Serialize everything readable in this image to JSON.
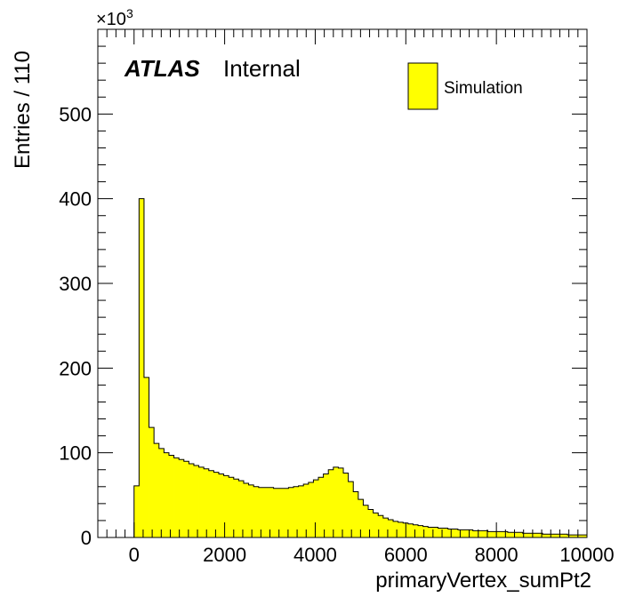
{
  "chart_data": {
    "type": "bar",
    "title": "",
    "xlabel": "primaryVertex_sumPt2",
    "ylabel": "Entries / 110",
    "y_scale_label": "×10",
    "y_scale_exponent": "3",
    "xlim": [
      -800,
      10000
    ],
    "ylim": [
      0,
      600
    ],
    "xticks": [
      "0",
      "2000",
      "4000",
      "6000",
      "8000",
      "10000"
    ],
    "yticks": [
      "0",
      "100",
      "200",
      "300",
      "400",
      "500"
    ],
    "annotation": {
      "experiment": "ATLAS",
      "status": "Internal"
    },
    "legend": {
      "position": "top-right",
      "entries": [
        "Simulation"
      ]
    },
    "series": [
      {
        "name": "Simulation",
        "color": "#ffff00",
        "bin_width": 110,
        "bin_edges_start": 0,
        "values": [
          61,
          400,
          189,
          130,
          111,
          105,
          100,
          97,
          94,
          92,
          90,
          87,
          85,
          83,
          81,
          79,
          77,
          75,
          73,
          71,
          69,
          67,
          64,
          62,
          60,
          59,
          59,
          59,
          58,
          58,
          58,
          59,
          60,
          61,
          63,
          65,
          68,
          71,
          75,
          80,
          83,
          82,
          76,
          66,
          54,
          45,
          38,
          33,
          29,
          26,
          23,
          21,
          19,
          18,
          17,
          16,
          15,
          14,
          13,
          12,
          12,
          11,
          11,
          10,
          10,
          9,
          9,
          9,
          8,
          8,
          8,
          7,
          7,
          7,
          7,
          6,
          6,
          6,
          5,
          5,
          5,
          5,
          4,
          4,
          4,
          4,
          4,
          3,
          3,
          3,
          3
        ]
      }
    ]
  }
}
